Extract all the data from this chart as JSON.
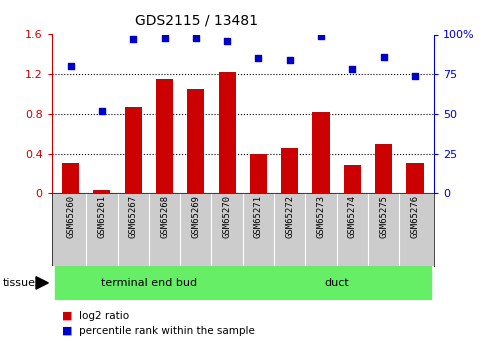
{
  "title": "GDS2115 / 13481",
  "categories": [
    "GSM65260",
    "GSM65261",
    "GSM65267",
    "GSM65268",
    "GSM65269",
    "GSM65270",
    "GSM65271",
    "GSM65272",
    "GSM65273",
    "GSM65274",
    "GSM65275",
    "GSM65276"
  ],
  "log2_ratio": [
    0.3,
    0.03,
    0.87,
    1.15,
    1.05,
    1.22,
    0.4,
    0.46,
    0.82,
    0.28,
    0.5,
    0.3
  ],
  "percentile_rank": [
    80,
    52,
    97,
    98,
    98,
    96,
    85,
    84,
    99,
    78,
    86,
    74
  ],
  "bar_color": "#cc0000",
  "dot_color": "#0000cc",
  "ylim_left": [
    0,
    1.6
  ],
  "ylim_right": [
    0,
    100
  ],
  "yticks_left": [
    0,
    0.4,
    0.8,
    1.2,
    1.6
  ],
  "ytick_labels_left": [
    "0",
    "0.4",
    "0.8",
    "1.2",
    "1.6"
  ],
  "yticks_right": [
    0,
    25,
    50,
    75,
    100
  ],
  "ytick_labels_right": [
    "0",
    "25",
    "50",
    "75",
    "100%"
  ],
  "group1_label": "terminal end bud",
  "group2_label": "duct",
  "group_color": "#66ee66",
  "tissue_label": "tissue",
  "legend_bar_label": "log2 ratio",
  "legend_dot_label": "percentile rank within the sample",
  "dotted_lines": [
    0.4,
    0.8,
    1.2
  ],
  "bar_width": 0.55,
  "label_bg_color": "#cccccc"
}
